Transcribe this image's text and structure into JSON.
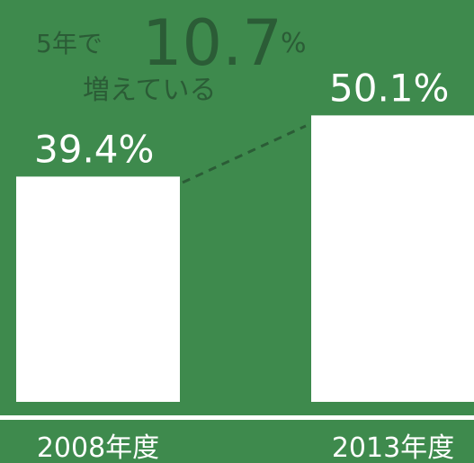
{
  "chart_data": {
    "type": "bar",
    "categories": [
      "2008年度",
      "2013年度"
    ],
    "values": [
      39.4,
      50.1
    ],
    "value_labels": [
      "39.4%",
      "50.1%"
    ],
    "color": "#ffffff",
    "annotation": {
      "lead": "5年で",
      "value": 10.7,
      "unit": "%",
      "tail": "増えている"
    }
  }
}
